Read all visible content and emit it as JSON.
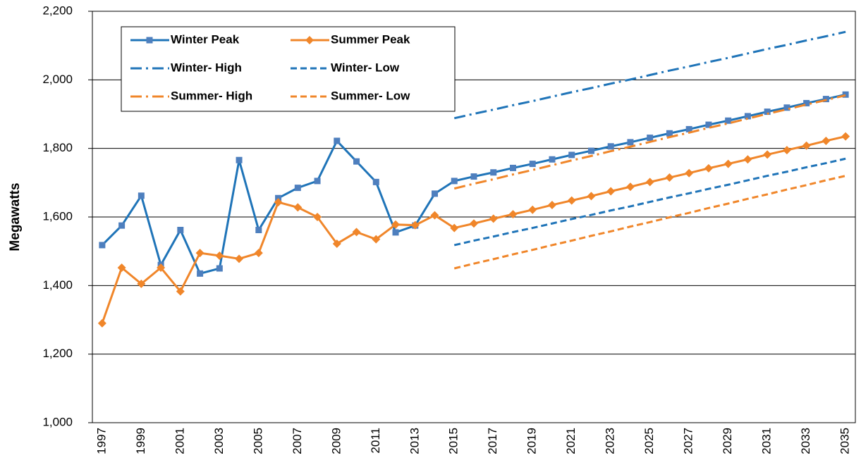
{
  "chart_data": {
    "type": "line",
    "y_label": "Megawatts",
    "categories": [
      "1997",
      null,
      "1999",
      null,
      "2001",
      null,
      "2003",
      null,
      "2005",
      null,
      "2007",
      null,
      "2009",
      null,
      "2011",
      null,
      "2013",
      null,
      "2015",
      null,
      "2017",
      null,
      "2019",
      null,
      "2021",
      null,
      "2023",
      null,
      "2025",
      null,
      "2027",
      null,
      "2029",
      null,
      "2031",
      null,
      "2033",
      null,
      "2035"
    ],
    "ylim": [
      1000,
      2200
    ],
    "yticks": [
      {
        "value": 1000,
        "label": "1,000"
      },
      {
        "value": 1200,
        "label": "1,200"
      },
      {
        "value": 1400,
        "label": "1,400"
      },
      {
        "value": 1600,
        "label": "1,600"
      },
      {
        "value": 1800,
        "label": "1,800"
      },
      {
        "value": 2000,
        "label": "2,000"
      },
      {
        "value": 2200,
        "label": "2,200"
      }
    ],
    "grid": true,
    "legend": "upper left",
    "series": [
      {
        "name": "Winter Peak",
        "color": "#1f74b8",
        "style": "solid",
        "marker": "square",
        "values": [
          1518,
          1575,
          1662,
          1460,
          1562,
          1435,
          1450,
          1766,
          1562,
          1655,
          1685,
          1705,
          1822,
          1762,
          1702,
          1555,
          1575,
          1668,
          1705,
          1718,
          1730,
          1743,
          1755,
          1768,
          1781,
          1793,
          1806,
          1818,
          1831,
          1844,
          1856,
          1869,
          1881,
          1894,
          1907,
          1919,
          1932,
          1944,
          1957
        ]
      },
      {
        "name": "Summer Peak",
        "color": "#f0862a",
        "style": "solid",
        "marker": "diamond",
        "values": [
          1290,
          1452,
          1405,
          1452,
          1383,
          1495,
          1487,
          1478,
          1495,
          1643,
          1628,
          1600,
          1522,
          1556,
          1535,
          1578,
          1576,
          1605,
          1568,
          1581,
          1595,
          1608,
          1621,
          1635,
          1648,
          1661,
          1675,
          1688,
          1702,
          1715,
          1728,
          1742,
          1755,
          1768,
          1782,
          1795,
          1808,
          1822,
          1835
        ]
      },
      {
        "name": "Winter- High",
        "color": "#1f74b8",
        "style": "dashdot",
        "values": [
          null,
          null,
          null,
          null,
          null,
          null,
          null,
          null,
          null,
          null,
          null,
          null,
          null,
          null,
          null,
          null,
          null,
          null,
          1888,
          1901,
          1913,
          1926,
          1938,
          1951,
          1964,
          1976,
          1989,
          2001,
          2014,
          2027,
          2039,
          2052,
          2064,
          2077,
          2090,
          2102,
          2115,
          2127,
          2140
        ]
      },
      {
        "name": "Winter- Low",
        "color": "#1f74b8",
        "style": "dash",
        "values": [
          null,
          null,
          null,
          null,
          null,
          null,
          null,
          null,
          null,
          null,
          null,
          null,
          null,
          null,
          null,
          null,
          null,
          null,
          1518,
          1531,
          1543,
          1556,
          1568,
          1581,
          1594,
          1606,
          1619,
          1631,
          1644,
          1657,
          1669,
          1682,
          1694,
          1707,
          1720,
          1732,
          1745,
          1757,
          1770
        ]
      },
      {
        "name": "Summer- High",
        "color": "#f0862a",
        "style": "dashdot",
        "values": [
          null,
          null,
          null,
          null,
          null,
          null,
          null,
          null,
          null,
          null,
          null,
          null,
          null,
          null,
          null,
          null,
          null,
          null,
          1683,
          1697,
          1710,
          1724,
          1737,
          1751,
          1765,
          1778,
          1792,
          1805,
          1819,
          1833,
          1846,
          1860,
          1873,
          1887,
          1901,
          1914,
          1928,
          1941,
          1955
        ]
      },
      {
        "name": "Summer- Low",
        "color": "#f0862a",
        "style": "dash",
        "values": [
          null,
          null,
          null,
          null,
          null,
          null,
          null,
          null,
          null,
          null,
          null,
          null,
          null,
          null,
          null,
          null,
          null,
          null,
          1450,
          1464,
          1477,
          1491,
          1504,
          1518,
          1531,
          1545,
          1558,
          1572,
          1585,
          1599,
          1612,
          1626,
          1639,
          1653,
          1666,
          1680,
          1693,
          1707,
          1720
        ]
      }
    ]
  }
}
